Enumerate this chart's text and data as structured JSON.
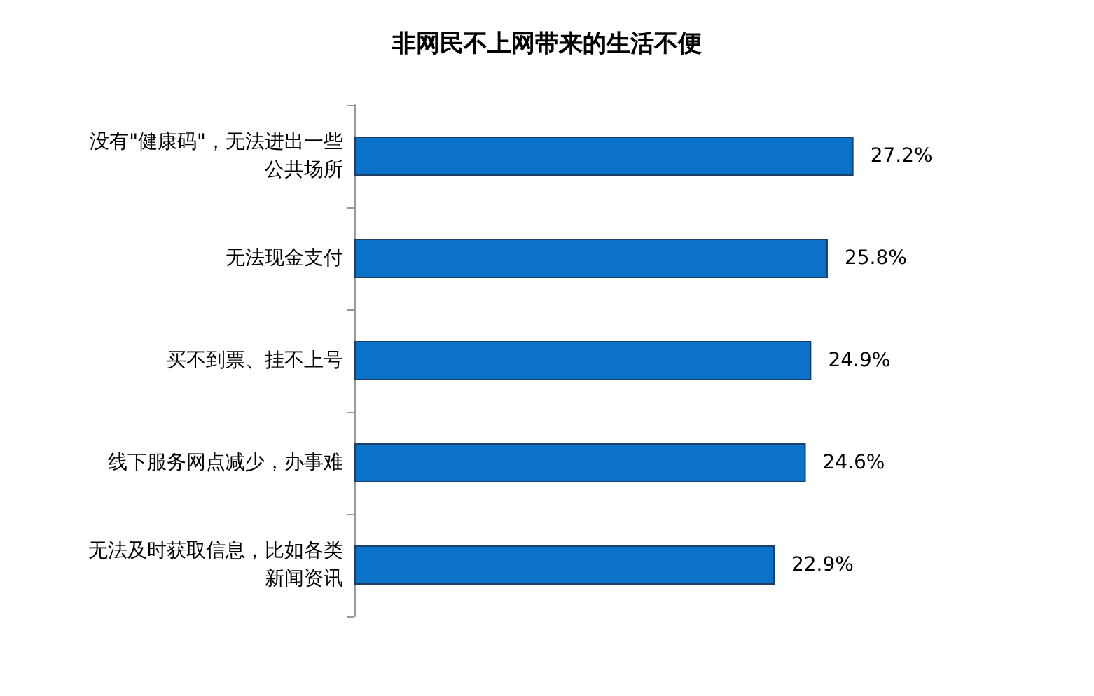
{
  "chart_data": {
    "type": "bar",
    "orientation": "horizontal",
    "title": "非网民不上网带来的生活不便",
    "categories": [
      "没有\"健康码\"，无法进出一些公共场所",
      "无法现金支付",
      "买不到票、挂不上号",
      "线下服务网点减少，办事难",
      "无法及时获取信息，比如各类新闻资讯"
    ],
    "values": [
      27.2,
      25.8,
      24.9,
      24.6,
      22.9
    ],
    "value_labels": [
      "27.2%",
      "25.8%",
      "24.9%",
      "24.6%",
      "22.9%"
    ],
    "color": "#0a72c8",
    "tick_labels": "y"
  }
}
